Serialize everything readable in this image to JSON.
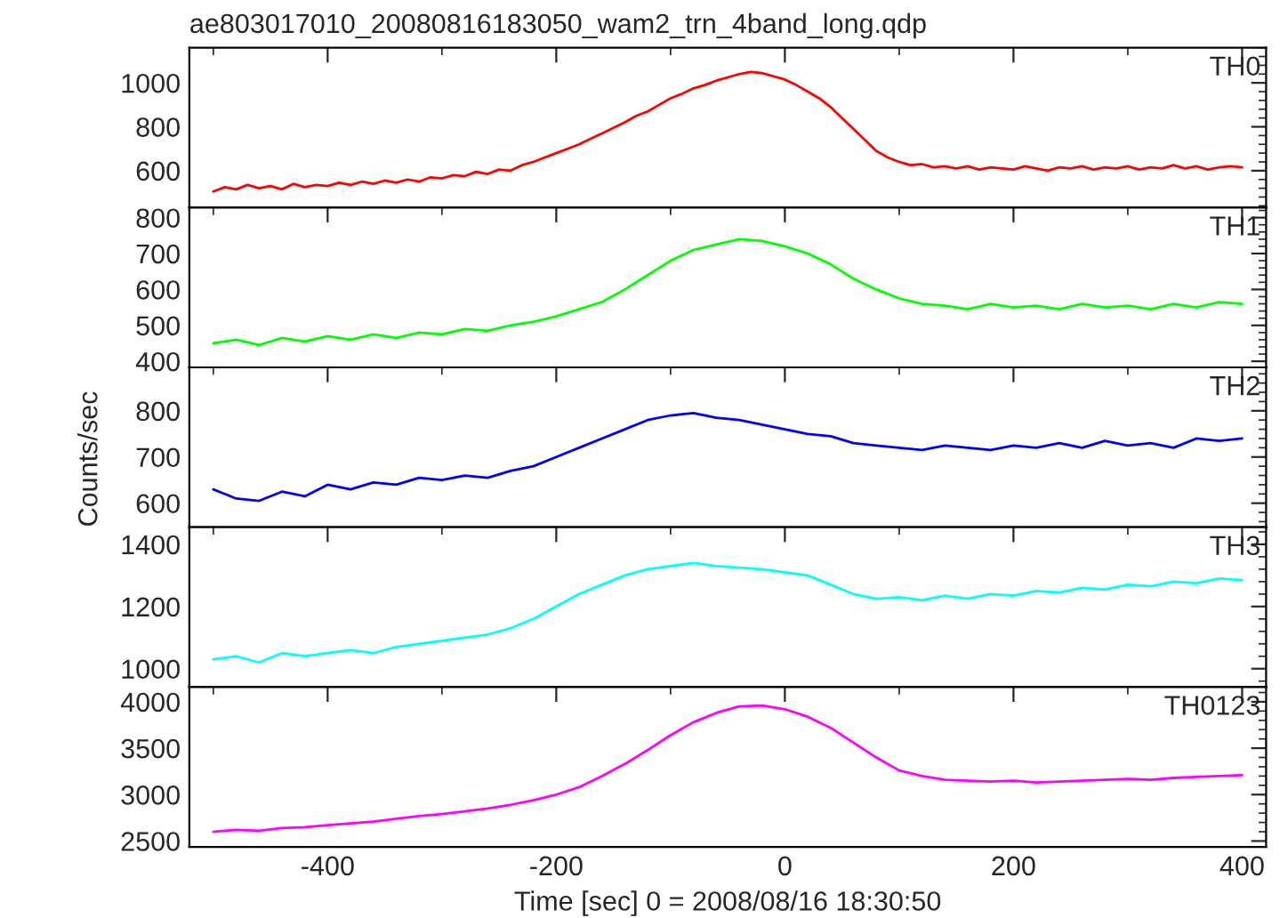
{
  "chart_data": [
    {
      "type": "line",
      "title": "ae803017010_20080816183050_wam2_trn_4band_long.qdp",
      "xlim": [
        -521,
        421
      ],
      "ylim": [
        432,
        1160
      ],
      "yticks": [
        600,
        800,
        1000
      ],
      "tick_labels": "y",
      "grid": false,
      "series": [
        {
          "name": "TH0",
          "color": "#ff0000",
          "x": [
            -500,
            -490,
            -480,
            -470,
            -460,
            -450,
            -440,
            -430,
            -420,
            -410,
            -400,
            -390,
            -380,
            -370,
            -360,
            -350,
            -340,
            -330,
            -320,
            -310,
            -300,
            -290,
            -280,
            -270,
            -260,
            -250,
            -240,
            -230,
            -220,
            -210,
            -200,
            -190,
            -180,
            -170,
            -160,
            -150,
            -140,
            -130,
            -120,
            -110,
            -100,
            -90,
            -80,
            -70,
            -60,
            -50,
            -40,
            -30,
            -20,
            -10,
            0,
            10,
            20,
            30,
            40,
            50,
            60,
            70,
            80,
            90,
            100,
            110,
            120,
            130,
            140,
            150,
            160,
            170,
            180,
            190,
            200,
            210,
            220,
            230,
            240,
            250,
            260,
            270,
            280,
            290,
            300,
            310,
            320,
            330,
            340,
            350,
            360,
            370,
            380,
            390,
            400
          ],
          "values": [
            505,
            525,
            515,
            535,
            520,
            530,
            515,
            540,
            525,
            535,
            530,
            545,
            535,
            550,
            540,
            555,
            545,
            560,
            550,
            570,
            565,
            580,
            575,
            595,
            585,
            605,
            600,
            625,
            640,
            660,
            680,
            700,
            720,
            745,
            770,
            795,
            820,
            850,
            870,
            900,
            930,
            950,
            975,
            990,
            1010,
            1025,
            1040,
            1050,
            1045,
            1030,
            1015,
            990,
            960,
            930,
            890,
            840,
            790,
            740,
            690,
            660,
            640,
            625,
            630,
            615,
            620,
            610,
            620,
            605,
            615,
            610,
            605,
            620,
            610,
            600,
            615,
            610,
            620,
            605,
            615,
            610,
            620,
            605,
            615,
            610,
            625,
            610,
            620,
            605,
            615,
            620,
            615
          ]
        }
      ]
    },
    {
      "type": "line",
      "xlim": [
        -521,
        421
      ],
      "ylim": [
        383,
        828
      ],
      "yticks": [
        400,
        500,
        600,
        700,
        800
      ],
      "tick_labels": "y",
      "grid": false,
      "series": [
        {
          "name": "TH1",
          "color": "#00ff00",
          "x": [
            -500,
            -480,
            -460,
            -440,
            -420,
            -400,
            -380,
            -360,
            -340,
            -320,
            -300,
            -280,
            -260,
            -240,
            -220,
            -200,
            -180,
            -160,
            -140,
            -120,
            -100,
            -80,
            -60,
            -40,
            -20,
            0,
            20,
            40,
            60,
            80,
            100,
            120,
            140,
            160,
            180,
            200,
            220,
            240,
            260,
            280,
            300,
            320,
            340,
            360,
            380,
            400
          ],
          "values": [
            450,
            460,
            445,
            465,
            455,
            470,
            460,
            475,
            465,
            480,
            475,
            490,
            485,
            500,
            510,
            525,
            545,
            565,
            600,
            640,
            680,
            710,
            725,
            740,
            735,
            720,
            700,
            670,
            630,
            600,
            575,
            560,
            555,
            545,
            560,
            550,
            555,
            545,
            560,
            550,
            555,
            545,
            560,
            550,
            565,
            560
          ]
        }
      ]
    },
    {
      "type": "line",
      "ylabel": "Counts/sec",
      "xlim": [
        -521,
        421
      ],
      "ylim": [
        548,
        894
      ],
      "yticks": [
        600,
        700,
        800
      ],
      "tick_labels": "y",
      "grid": false,
      "series": [
        {
          "name": "TH2",
          "color": "#0000ff",
          "x": [
            -500,
            -480,
            -460,
            -440,
            -420,
            -400,
            -380,
            -360,
            -340,
            -320,
            -300,
            -280,
            -260,
            -240,
            -220,
            -200,
            -180,
            -160,
            -140,
            -120,
            -100,
            -80,
            -60,
            -40,
            -20,
            0,
            20,
            40,
            60,
            80,
            100,
            120,
            140,
            160,
            180,
            200,
            220,
            240,
            260,
            280,
            300,
            320,
            340,
            360,
            380,
            400
          ],
          "values": [
            630,
            610,
            605,
            625,
            615,
            640,
            630,
            645,
            640,
            655,
            650,
            660,
            655,
            670,
            680,
            700,
            720,
            740,
            760,
            780,
            790,
            795,
            785,
            780,
            770,
            760,
            750,
            745,
            730,
            725,
            720,
            715,
            725,
            720,
            715,
            725,
            720,
            730,
            720,
            735,
            725,
            730,
            720,
            740,
            735,
            740
          ]
        }
      ]
    },
    {
      "type": "line",
      "xlim": [
        -521,
        421
      ],
      "ylim": [
        941,
        1455
      ],
      "yticks": [
        1000,
        1200,
        1400
      ],
      "tick_labels": "y",
      "grid": false,
      "series": [
        {
          "name": "TH3",
          "color": "#00ffff",
          "x": [
            -500,
            -480,
            -460,
            -440,
            -420,
            -400,
            -380,
            -360,
            -340,
            -320,
            -300,
            -280,
            -260,
            -240,
            -220,
            -200,
            -180,
            -160,
            -140,
            -120,
            -100,
            -80,
            -60,
            -40,
            -20,
            0,
            20,
            40,
            60,
            80,
            100,
            120,
            140,
            160,
            180,
            200,
            220,
            240,
            260,
            280,
            300,
            320,
            340,
            360,
            380,
            400
          ],
          "values": [
            1030,
            1040,
            1020,
            1050,
            1040,
            1050,
            1060,
            1050,
            1070,
            1080,
            1090,
            1100,
            1110,
            1130,
            1160,
            1200,
            1240,
            1270,
            1300,
            1320,
            1330,
            1340,
            1330,
            1325,
            1320,
            1310,
            1300,
            1270,
            1240,
            1225,
            1230,
            1220,
            1235,
            1225,
            1240,
            1235,
            1250,
            1245,
            1260,
            1255,
            1270,
            1265,
            1280,
            1275,
            1290,
            1285
          ]
        }
      ]
    },
    {
      "type": "line",
      "xlabel": "Time [sec] 0 = 2008/08/16 18:30:50",
      "xlim": [
        -521,
        421
      ],
      "xticks": [
        -400,
        -200,
        0,
        200,
        400
      ],
      "ylim": [
        2437,
        4159
      ],
      "yticks": [
        2500,
        3000,
        3500,
        4000
      ],
      "grid": false,
      "series": [
        {
          "name": "TH0123",
          "color": "#ff00ff",
          "x": [
            -500,
            -480,
            -460,
            -440,
            -420,
            -400,
            -380,
            -360,
            -340,
            -320,
            -300,
            -280,
            -260,
            -240,
            -220,
            -200,
            -180,
            -160,
            -140,
            -120,
            -100,
            -80,
            -60,
            -40,
            -20,
            0,
            20,
            40,
            60,
            80,
            100,
            120,
            140,
            160,
            180,
            200,
            220,
            240,
            260,
            280,
            300,
            320,
            340,
            360,
            380,
            400
          ],
          "values": [
            2600,
            2620,
            2610,
            2640,
            2650,
            2670,
            2690,
            2710,
            2740,
            2770,
            2790,
            2820,
            2850,
            2890,
            2940,
            3000,
            3080,
            3200,
            3330,
            3480,
            3640,
            3780,
            3880,
            3950,
            3960,
            3920,
            3840,
            3720,
            3560,
            3400,
            3260,
            3200,
            3160,
            3150,
            3140,
            3150,
            3130,
            3140,
            3150,
            3160,
            3170,
            3160,
            3180,
            3190,
            3200,
            3210
          ]
        }
      ]
    }
  ]
}
